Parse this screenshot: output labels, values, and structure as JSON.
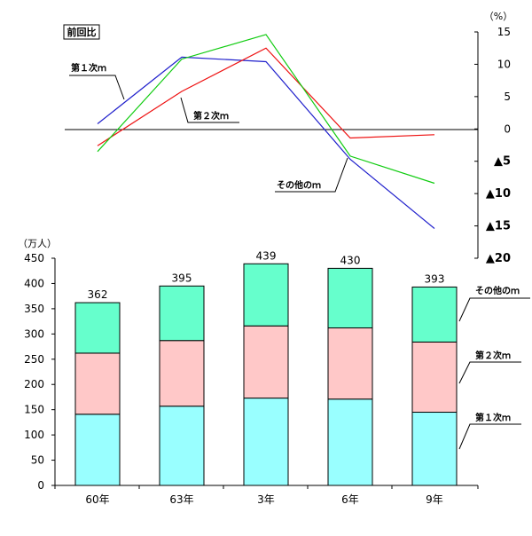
{
  "chart_data": [
    {
      "type": "line",
      "title_box": "前回比",
      "yaxis_unit": "（%）",
      "ylim": [
        -20,
        15
      ],
      "yticks": [
        {
          "value": 15,
          "label": "15"
        },
        {
          "value": 10,
          "label": "10"
        },
        {
          "value": 5,
          "label": "5"
        },
        {
          "value": 0,
          "label": "0"
        },
        {
          "value": -5,
          "label": "▲5"
        },
        {
          "value": -10,
          "label": "▲10"
        },
        {
          "value": -15,
          "label": "▲15"
        },
        {
          "value": -20,
          "label": "▲20"
        }
      ],
      "x_index": [
        0,
        1,
        2,
        3,
        4
      ],
      "series": [
        {
          "name": "第１次ｍ",
          "color": "#2020cc",
          "values": [
            0.8,
            11.1,
            10.4,
            -4.7,
            -15.4
          ]
        },
        {
          "name": "第２次ｍ",
          "color": "#ee1111",
          "values": [
            -2.6,
            5.8,
            12.5,
            -1.4,
            -0.9
          ]
        },
        {
          "name": "その他のｍ",
          "color": "#11cc11",
          "values": [
            -3.5,
            10.8,
            14.6,
            -4.2,
            -8.4
          ]
        }
      ],
      "callouts": [
        "第１次ｍ",
        "第２次ｍ",
        "その他のｍ"
      ]
    },
    {
      "type": "bar",
      "stacked": true,
      "yaxis_unit": "（万人）",
      "ylim": [
        0,
        450
      ],
      "yticks": [
        0,
        50,
        100,
        150,
        200,
        250,
        300,
        350,
        400,
        450
      ],
      "categories": [
        "60年",
        "63年",
        "3年",
        "6年",
        "9年"
      ],
      "totals": [
        "362",
        "395",
        "439",
        "430",
        "393"
      ],
      "series": [
        {
          "name": "第１次ｍ",
          "color": "#99ffff",
          "values": [
            141,
            157,
            173,
            171,
            145
          ]
        },
        {
          "name": "第２次ｍ",
          "color": "#ffc8c8",
          "values": [
            121,
            130,
            143,
            141,
            139
          ]
        },
        {
          "name": "その他のｍ",
          "color": "#66ffcc",
          "values": [
            100,
            108,
            123,
            118,
            109
          ]
        }
      ]
    }
  ]
}
